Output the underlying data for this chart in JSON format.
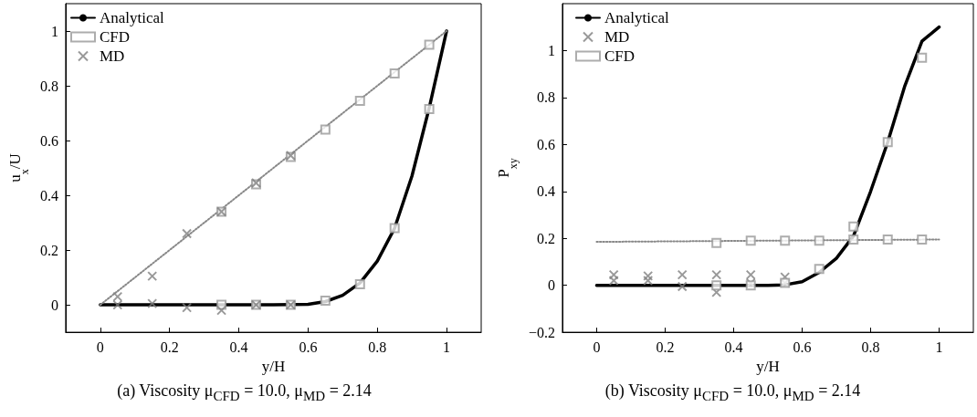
{
  "chart_data": [
    {
      "type": "line",
      "xlabel": "y/H",
      "ylabel": "u$_{x}$/U",
      "annotations": [
        "(a) Viscosity μ$_{CFD}$ = 10.0, μ$_{MD}$ = 2.14"
      ],
      "xlim": [
        -0.1,
        1.1
      ],
      "ylim": [
        -0.1,
        1.1
      ],
      "xticks": [
        0,
        0.2,
        0.4,
        0.6,
        0.8,
        1
      ],
      "yticks": [
        0,
        0.2,
        0.4,
        0.6,
        0.8,
        1
      ],
      "grid": false,
      "legend": "top left",
      "series": [
        {
          "name": "Analytical",
          "color": "#000000",
          "marker": "none",
          "line_style": "solid",
          "x": [
            0,
            0.1,
            0.2,
            0.3,
            0.4,
            0.5,
            0.6,
            0.65,
            0.7,
            0.75,
            0.8,
            0.85,
            0.9,
            0.95,
            1
          ],
          "values": [
            0,
            0,
            0,
            0,
            0,
            0,
            0.002,
            0.012,
            0.035,
            0.08,
            0.16,
            0.28,
            0.47,
            0.72,
            1
          ]
        },
        {
          "type": "line",
          "color": "#888888",
          "marker": "none",
          "line_style": "dotted",
          "x": [
            0,
            1
          ],
          "values": [
            0,
            1
          ]
        },
        {
          "name": "CFD",
          "type": "scatter",
          "color": "#999999",
          "marker": "square",
          "x": [
            0.35,
            0.45,
            0.55,
            0.65,
            0.75,
            0.85,
            0.95,
            0.35,
            0.45,
            0.55,
            0.65,
            0.75,
            0.85,
            0.95
          ],
          "values": [
            0.34,
            0.44,
            0.54,
            0.64,
            0.745,
            0.845,
            0.95,
            0,
            0,
            0,
            0.015,
            0.075,
            0.28,
            0.715
          ]
        },
        {
          "name": "MD",
          "type": "scatter",
          "color": "#808080",
          "marker": "cross",
          "x": [
            0.05,
            0.15,
            0.25,
            0.35,
            0.45,
            0.55,
            0.05,
            0.15,
            0.25,
            0.35,
            0.45,
            0.55
          ],
          "values": [
            0.03,
            0.105,
            0.26,
            0.34,
            0.445,
            0.545,
            0,
            0.005,
            -0.01,
            -0.02,
            0,
            0
          ]
        }
      ]
    },
    {
      "type": "line",
      "xlabel": "y/H",
      "ylabel": "P$_{xy}$",
      "annotations": [
        "(b) Viscosity μ$_{CFD}$ = 10.0, μ$_{MD}$ = 2.14"
      ],
      "xlim": [
        -0.1,
        1.1
      ],
      "ylim": [
        -0.2,
        1.2
      ],
      "xticks": [
        0,
        0.2,
        0.4,
        0.6,
        0.8,
        1
      ],
      "yticks": [
        {
          "value": -0.2,
          "label": "−0.2"
        },
        0,
        0.2,
        0.4,
        0.6,
        0.8,
        1
      ],
      "grid": false,
      "legend": "top left",
      "series": [
        {
          "name": "Analytical",
          "color": "#000000",
          "marker": "none",
          "line_style": "solid",
          "x": [
            0,
            0.1,
            0.2,
            0.3,
            0.4,
            0.5,
            0.55,
            0.6,
            0.65,
            0.7,
            0.75,
            0.8,
            0.85,
            0.9,
            0.95,
            1
          ],
          "values": [
            0,
            0,
            0,
            0,
            0,
            0,
            0.002,
            0.015,
            0.055,
            0.115,
            0.21,
            0.4,
            0.61,
            0.85,
            1.04,
            1.1
          ]
        },
        {
          "type": "line",
          "color": "#888888",
          "marker": "none",
          "line_style": "dotted",
          "x": [
            0,
            1
          ],
          "values": [
            0.185,
            0.195
          ]
        },
        {
          "name": "MD",
          "type": "scatter",
          "color": "#808080",
          "marker": "cross",
          "x": [
            0.05,
            0.15,
            0.25,
            0.35,
            0.45,
            0.55,
            0.05,
            0.15,
            0.25,
            0.35,
            0.45,
            0.55
          ],
          "values": [
            0.045,
            0.04,
            0.045,
            0.045,
            0.045,
            0.035,
            0.02,
            0.02,
            -0.005,
            -0.03,
            0.01,
            0.01
          ]
        },
        {
          "name": "CFD",
          "type": "scatter",
          "color": "#999999",
          "marker": "square",
          "x": [
            0.35,
            0.45,
            0.55,
            0.65,
            0.75,
            0.85,
            0.95,
            0.35,
            0.45,
            0.55,
            0.65,
            0.75,
            0.85,
            0.95
          ],
          "values": [
            0.18,
            0.19,
            0.19,
            0.19,
            0.195,
            0.195,
            0.195,
            0,
            0,
            0.01,
            0.07,
            0.25,
            0.61,
            0.97
          ]
        }
      ]
    }
  ]
}
